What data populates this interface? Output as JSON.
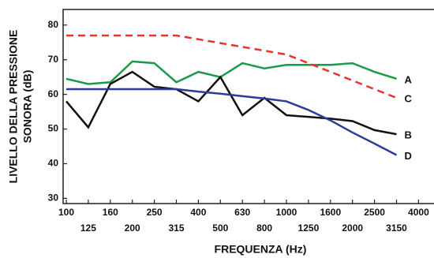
{
  "chart_data": {
    "type": "line",
    "x_label": "FREQUENZA (Hz)",
    "y_label": [
      "LIVELLO DELLA PRESSIONE",
      "SONORA (dB)"
    ],
    "categories": [
      "100",
      "125",
      "160",
      "200",
      "250",
      "315",
      "400",
      "500",
      "630",
      "800",
      "1000",
      "1250",
      "1600",
      "2000",
      "2500",
      "3150",
      "4000"
    ],
    "ylim": [
      28.5,
      84.5
    ],
    "yticks": [
      30,
      40,
      50,
      60,
      70,
      80
    ],
    "series": [
      {
        "name": "A",
        "color": "#1a9a4a",
        "dash": false,
        "values": [
          64.5,
          63,
          63.5,
          69.5,
          69,
          63.5,
          66.5,
          65,
          69,
          67.5,
          68.5,
          68.5,
          68.5,
          69,
          66.5,
          64.5,
          null
        ]
      },
      {
        "name": "B",
        "color": "#111111",
        "dash": false,
        "values": [
          58,
          50.5,
          63,
          66.5,
          62.2,
          61.5,
          58,
          65,
          54,
          59,
          54,
          53.5,
          53,
          52.3,
          49.7,
          48.5,
          null
        ]
      },
      {
        "name": "C",
        "color": "#e8332e",
        "dash": true,
        "values": [
          77,
          77,
          77,
          77,
          77,
          77,
          75.9,
          74.8,
          73.7,
          72.6,
          71.5,
          69,
          66.5,
          64,
          61.5,
          59,
          null
        ]
      },
      {
        "name": "D",
        "color": "#2e3c99",
        "dash": false,
        "values": [
          61.5,
          61.5,
          61.5,
          61.5,
          61.5,
          61.5,
          60.8,
          60.2,
          59.5,
          58.8,
          58,
          55.5,
          52.5,
          49,
          45.8,
          42.5,
          null
        ]
      }
    ]
  }
}
